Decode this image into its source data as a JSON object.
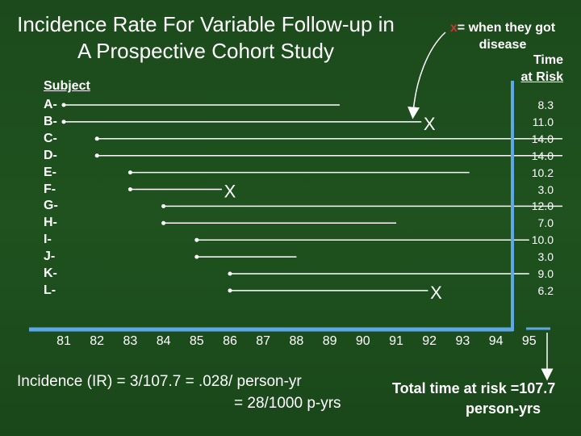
{
  "title": "Incidence Rate For Variable Follow-up in A Prospective Cohort Study",
  "note": {
    "x_symbol": "x",
    "text": "= when they got disease"
  },
  "time_at_risk_header": [
    "Time",
    "at Risk"
  ],
  "subject_header": "Subject",
  "subjects": [
    {
      "label": "A-",
      "start": 81,
      "end": 89.3,
      "disease": false,
      "time": "8.3"
    },
    {
      "label": "B-",
      "start": 81,
      "end": 92,
      "disease": true,
      "time": "11.0"
    },
    {
      "label": "C-",
      "start": 82,
      "end": 96,
      "disease": false,
      "time": "14.0"
    },
    {
      "label": "D-",
      "start": 82,
      "end": 96,
      "disease": false,
      "time": "14.0"
    },
    {
      "label": "E-",
      "start": 83,
      "end": 93.2,
      "disease": false,
      "time": "10.2"
    },
    {
      "label": "F-",
      "start": 83,
      "end": 86,
      "disease": true,
      "time": "3.0"
    },
    {
      "label": "G-",
      "start": 84,
      "end": 96,
      "disease": false,
      "time": "12.0"
    },
    {
      "label": "H-",
      "start": 84,
      "end": 91,
      "disease": false,
      "time": "7.0"
    },
    {
      "label": "I-",
      "start": 85,
      "end": 95,
      "disease": false,
      "time": "10.0"
    },
    {
      "label": "J-",
      "start": 85,
      "end": 88,
      "disease": false,
      "time": "3.0"
    },
    {
      "label": "K-",
      "start": 86,
      "end": 95,
      "disease": false,
      "time": "9.0"
    },
    {
      "label": "L-",
      "start": 86,
      "end": 92.2,
      "disease": true,
      "time": "6.2"
    }
  ],
  "years": [
    "81",
    "82",
    "83",
    "84",
    "85",
    "86",
    "87",
    "88",
    "89",
    "90",
    "91",
    "92",
    "93",
    "94",
    "95"
  ],
  "x_mark": "X",
  "incidence_line1": "Incidence (IR) = 3/107.7  = .028/ person-yr",
  "incidence_line2": "= 28/1000 p-yrs",
  "total_line1": "Total time at risk =107.7",
  "total_line2": "person-yrs",
  "colors": {
    "background": "#1f521f",
    "axis": "#5fa8e8",
    "arrow_red": "#cc3333"
  }
}
